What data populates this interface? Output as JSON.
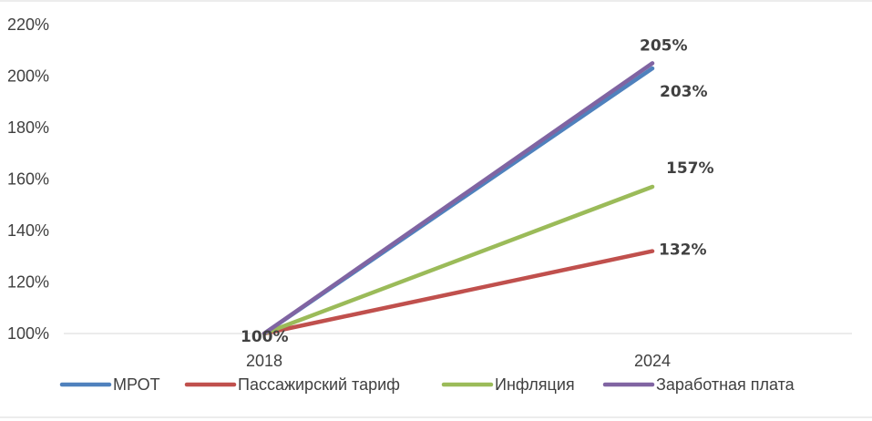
{
  "chart_data": {
    "type": "line",
    "categories": [
      "2018",
      "2024"
    ],
    "ylim": [
      100,
      220
    ],
    "y_ticks": [
      "100%",
      "120%",
      "140%",
      "160%",
      "180%",
      "200%",
      "220%"
    ],
    "y_tick_values": [
      100,
      120,
      140,
      160,
      180,
      200,
      220
    ],
    "grid": "none",
    "legend_position": "bottom",
    "series": [
      {
        "name": "МРОТ",
        "values": [
          100,
          203
        ],
        "color": "#4f81bd",
        "labels": [
          "",
          "203%"
        ]
      },
      {
        "name": "Пассажирский тариф",
        "values": [
          100,
          132
        ],
        "color": "#c0504d",
        "labels": [
          "",
          "132%"
        ]
      },
      {
        "name": "Инфляция",
        "values": [
          100,
          157
        ],
        "color": "#9bbb59",
        "labels": [
          "",
          "157%"
        ]
      },
      {
        "name": "Заработная плата",
        "values": [
          100,
          205
        ],
        "color": "#8064a2",
        "labels": [
          "100%",
          "205%"
        ]
      }
    ]
  }
}
